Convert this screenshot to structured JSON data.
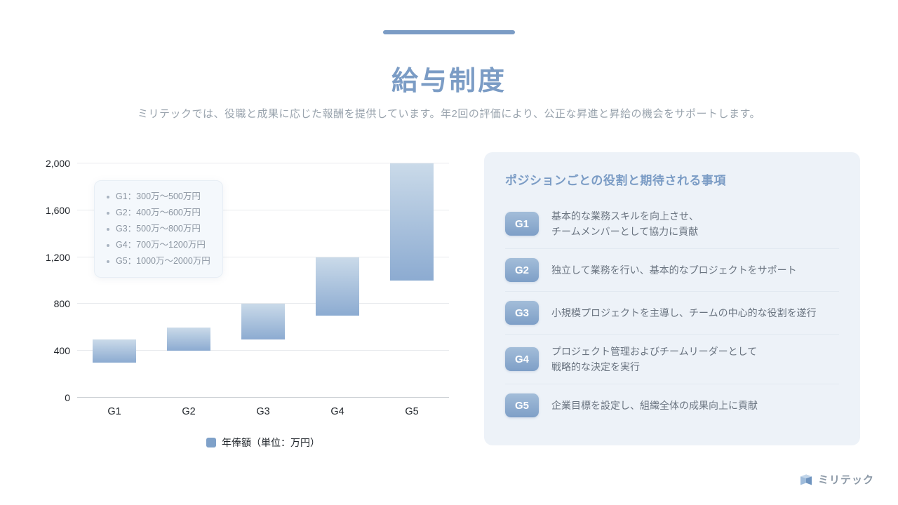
{
  "slide": {
    "title": "給与制度",
    "subtitle": "ミリテックでは、役職と成果に応じた報酬を提供しています。年2回の評価により、公正な昇進と昇給の機会をサポートします。",
    "accent_color": "#7b9cc5"
  },
  "chart_data": {
    "type": "bar",
    "variant": "floating_range_column",
    "categories": [
      "G1",
      "G2",
      "G3",
      "G4",
      "G5"
    ],
    "series": [
      {
        "name": "年俸額（単位：万円）",
        "ranges": [
          [
            300,
            500
          ],
          [
            400,
            600
          ],
          [
            500,
            800
          ],
          [
            700,
            1200
          ],
          [
            1000,
            2000
          ]
        ]
      }
    ],
    "ylim": [
      0,
      2000
    ],
    "yticks": [
      0,
      400,
      800,
      1200,
      1600,
      2000
    ],
    "ytick_labels": [
      "0",
      "400",
      "800",
      "1,200",
      "1,600",
      "2,000"
    ],
    "grid": "horizontal",
    "legend_position": "bottom",
    "legend_label": "年俸額（単位：万円）",
    "bar_color_top": "#cadae9",
    "bar_color_bottom": "#8cabd1",
    "annotation_items": [
      "G1：300万～500万円",
      "G2：400万～600万円",
      "G3：500万～800万円",
      "G4：700万～1200万円",
      "G5：1000万～2000万円"
    ]
  },
  "panel": {
    "title": "ポジションごとの役割と期待される事項",
    "rows": [
      {
        "grade": "G1",
        "lines": [
          "基本的な業務スキルを向上させ、",
          "チームメンバーとして協力に貢献"
        ]
      },
      {
        "grade": "G2",
        "lines": [
          "独立して業務を行い、基本的なプロジェクトをサポート"
        ]
      },
      {
        "grade": "G3",
        "lines": [
          "小規模プロジェクトを主導し、チームの中心的な役割を遂行"
        ]
      },
      {
        "grade": "G4",
        "lines": [
          "プロジェクト管理およびチームリーダーとして",
          "戦略的な決定を実行"
        ]
      },
      {
        "grade": "G5",
        "lines": [
          "企業目標を設定し、組織全体の成果向上に貢献"
        ]
      }
    ]
  },
  "footer": {
    "logo_text": "ミリテック"
  }
}
